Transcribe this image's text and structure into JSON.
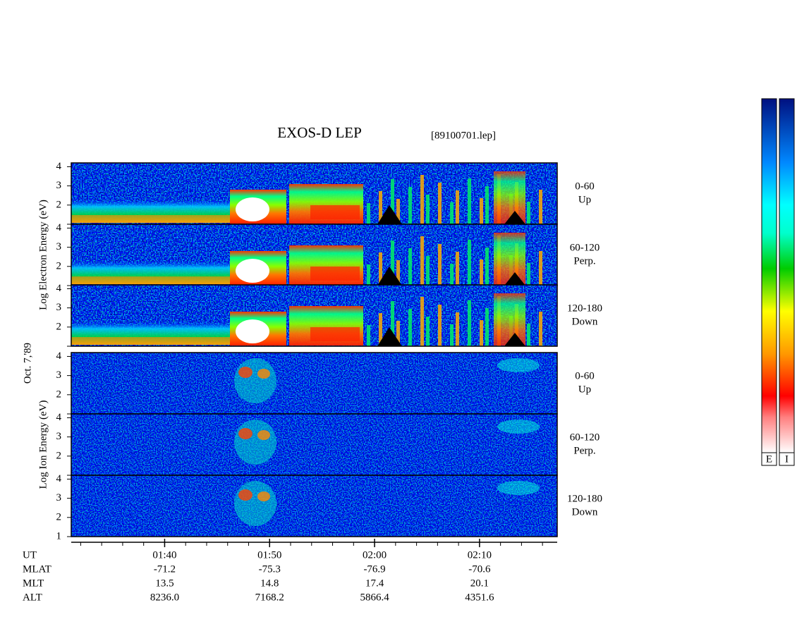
{
  "chart_data": {
    "type": "spectrogram",
    "title": "EXOS-D LEP",
    "file_label": "[89100701.lep]",
    "date_label": "Oct. 7,'89",
    "ylim": [
      1,
      4.2
    ],
    "xlim": [
      31.1,
      77.4
    ],
    "xticks": [
      {
        "value": 40,
        "label": "01:40"
      },
      {
        "value": 50,
        "label": "01:50"
      },
      {
        "value": 60,
        "label": "02:00"
      },
      {
        "value": 70,
        "label": "02:10"
      }
    ],
    "groups": [
      {
        "y_label": "Log Electron Energy (eV)",
        "panels": [
          {
            "yticks": [
              2,
              3,
              4
            ],
            "angle": "0-60",
            "direction": "Up"
          },
          {
            "yticks": [
              2,
              3,
              4
            ],
            "angle": "60-120",
            "direction": "Perp."
          },
          {
            "yticks": [
              2,
              3,
              4
            ],
            "angle": "120-180",
            "direction": "Down"
          }
        ]
      },
      {
        "y_label": "Log Ion Energy (eV)",
        "panels": [
          {
            "yticks": [
              2,
              3,
              4
            ],
            "angle": "0-60",
            "direction": "Up"
          },
          {
            "yticks": [
              2,
              3,
              4
            ],
            "angle": "60-120",
            "direction": "Perp."
          },
          {
            "yticks": [
              1,
              2,
              3,
              4
            ],
            "angle": "120-180",
            "direction": "Down"
          }
        ]
      }
    ],
    "ephemeris": [
      {
        "label": "UT",
        "values": []
      },
      {
        "label": "MLAT",
        "values": [
          "-71.2",
          "-75.3",
          "-76.9",
          "-70.6"
        ]
      },
      {
        "label": "MLT",
        "values": [
          "13.5",
          "14.8",
          "17.4",
          "20.1"
        ]
      },
      {
        "label": "ALT",
        "values": [
          "8236.0",
          "7168.2",
          "5866.4",
          "4351.6"
        ]
      }
    ],
    "colorbars": [
      "E",
      "I"
    ]
  }
}
